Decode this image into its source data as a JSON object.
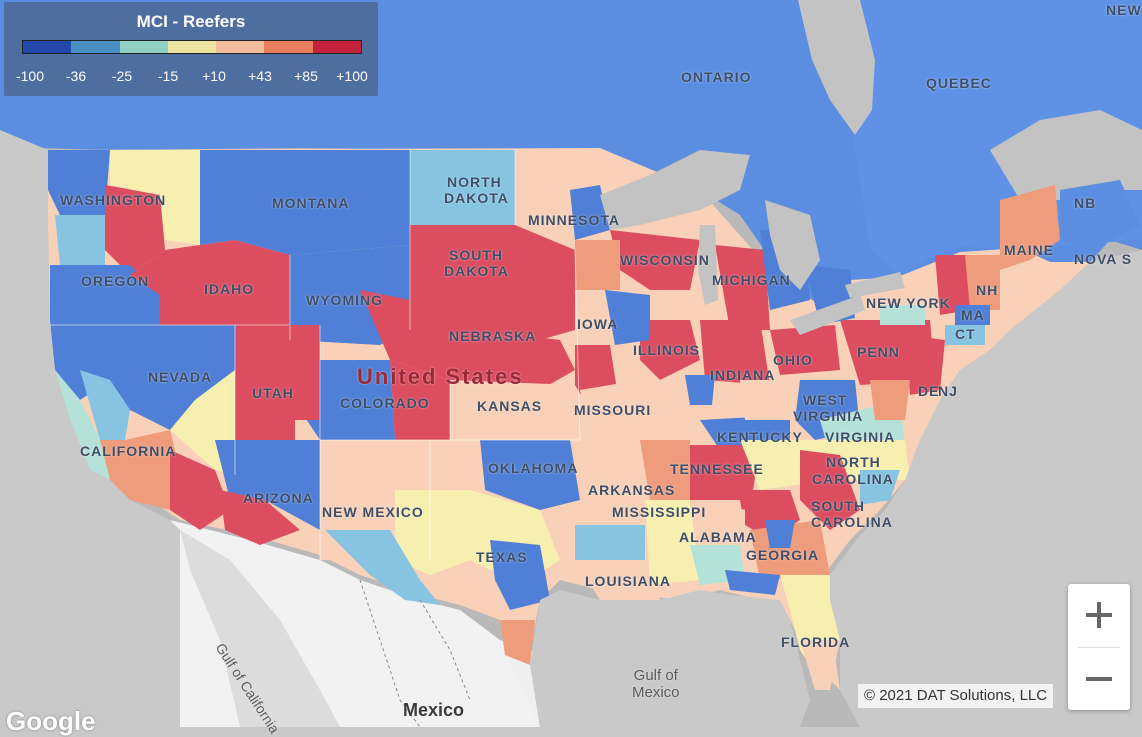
{
  "legend": {
    "title": "MCI - Reefers",
    "colors": [
      "#2347ab",
      "#4a8fc4",
      "#8fd0c2",
      "#eee5a2",
      "#f2be9e",
      "#e97e5e",
      "#c4213c"
    ],
    "ticks": [
      "-100",
      "-36",
      "-25",
      "-15",
      "+10",
      "+43",
      "+85",
      "+100"
    ]
  },
  "palette": {
    "strong_blue": "#4f7fd6",
    "light_blue": "#86c4e2",
    "teal": "#b4e2d8",
    "yellow": "#f7efb0",
    "peach": "#f8d1b8",
    "orange": "#ee9c7c",
    "red": "#dc4d60",
    "water": "#b9b9b9",
    "canada": "#5b8de0",
    "mexico_land": "#f2f2f2"
  },
  "map": {
    "labels": {
      "ontario": "ONTARIO",
      "quebec": "QUEBEC",
      "new_brunswick": "NB",
      "nova_scotia": "NOVA S",
      "new": "NEW",
      "washington": "WASHINGTON",
      "oregon": "OREGON",
      "idaho": "IDAHO",
      "montana": "MONTANA",
      "wyoming": "WYOMING",
      "north_dakota_1": "NORTH",
      "north_dakota_2": "DAKOTA",
      "south_dakota_1": "SOUTH",
      "south_dakota_2": "DAKOTA",
      "minnesota": "MINNESOTA",
      "wisconsin": "WISCONSIN",
      "michigan": "MICHIGAN",
      "iowa": "IOWA",
      "nebraska": "NEBRASKA",
      "illinois": "ILLINOIS",
      "indiana": "INDIANA",
      "ohio": "OHIO",
      "penn": "PENN",
      "new_york": "NEW YORK",
      "maine": "MAINE",
      "nh": "NH",
      "ma": "MA",
      "ct": "CT",
      "nj": "NJ",
      "de": "DE",
      "nevada": "NEVADA",
      "utah": "UTAH",
      "colorado": "COLORADO",
      "kansas": "KANSAS",
      "missouri": "MISSOURI",
      "kentucky": "KENTUCKY",
      "west_virginia_1": "WEST",
      "west_virginia_2": "VIRGINIA",
      "virginia": "VIRGINIA",
      "california": "CALIFORNIA",
      "arizona": "ARIZONA",
      "new_mexico": "NEW MEXICO",
      "oklahoma": "OKLAHOMA",
      "arkansas": "ARKANSAS",
      "tennessee": "TENNESSEE",
      "north_carolina_1": "NORTH",
      "north_carolina_2": "CAROLINA",
      "south_carolina_1": "SOUTH",
      "south_carolina_2": "CAROLINA",
      "mississippi": "MISSISSIPPI",
      "alabama": "ALABAMA",
      "georgia": "GEORGIA",
      "texas": "TEXAS",
      "louisiana": "LOUISIANA",
      "florida": "FLORIDA",
      "united_states": "United States",
      "mexico": "Mexico",
      "gulf_of_mexico_1": "Gulf of",
      "gulf_of_mexico_2": "Mexico",
      "gulf_of_california": "Gulf of California"
    }
  },
  "zoom": {
    "in_icon": "plus-icon",
    "out_icon": "minus-icon"
  },
  "attribution": "© 2021 DAT Solutions, LLC",
  "branding": "Google"
}
